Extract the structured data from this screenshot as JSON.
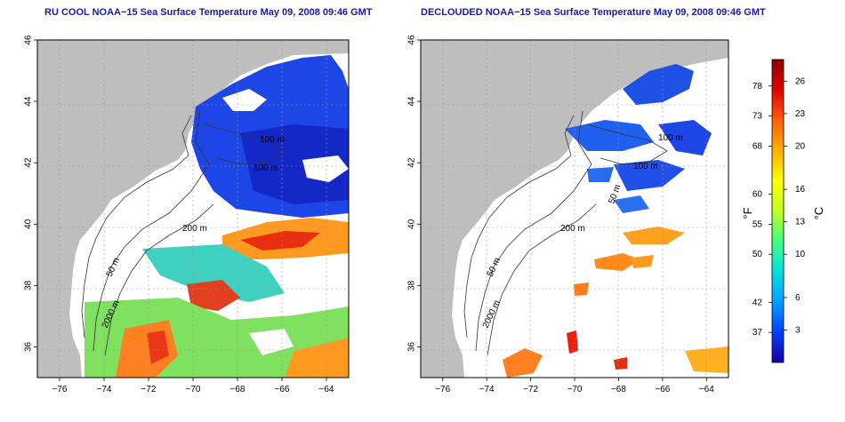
{
  "panels": [
    {
      "id": "left",
      "title": "RU COOL NOAA−15 Sea Surface Temperature May 09, 2008 09:46 GMT",
      "contour_labels": [
        "100 m",
        "100 m",
        "200 m",
        "50 m",
        "2000 m"
      ]
    },
    {
      "id": "right",
      "title": "DECLOUDED NOAA−15 Sea Surface Temperature May 09, 2008 09:46 GMT",
      "contour_labels": [
        "100 m",
        "100 m",
        "50 m",
        "200 m",
        "50 m",
        "2000 m"
      ]
    }
  ],
  "axes": {
    "lon_ticks": [
      "−76",
      "−74",
      "−72",
      "−70",
      "−68",
      "−66",
      "−64"
    ],
    "lat_ticks": [
      "36",
      "38",
      "40",
      "42",
      "44",
      "46"
    ],
    "lon_range": [
      -77,
      -63
    ],
    "lat_range": [
      35,
      46
    ]
  },
  "colorbar": {
    "fahrenheit_label": "°F",
    "celsius_label": "°C",
    "fahrenheit_ticks": [
      "78",
      "73",
      "68",
      "60",
      "55",
      "50",
      "42",
      "37"
    ],
    "celsius_ticks": [
      "26",
      "23",
      "20",
      "16",
      "13",
      "10",
      "6",
      "3"
    ],
    "colors": [
      "#1a00a0",
      "#0040ff",
      "#00a0ff",
      "#00e0e0",
      "#40ff80",
      "#c0ff20",
      "#ffff00",
      "#ffb000",
      "#ff6000",
      "#e00000",
      "#900000"
    ]
  },
  "colors": {
    "land": "#bebebe",
    "ocean_nodata": "#ffffff",
    "title": "#1a1aa0"
  }
}
